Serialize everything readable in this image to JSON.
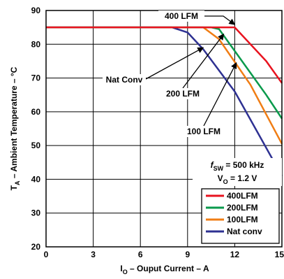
{
  "chart_data": {
    "type": "line",
    "xlabel_main": "I",
    "xlabel_sub": "O",
    "xlabel_rest": " – Ouput Current  – A",
    "ylabel_main": "T",
    "ylabel_sub": "A",
    "ylabel_rest": " – Ambient Temperature – °C",
    "xlim": [
      0,
      15
    ],
    "ylim": [
      20,
      90
    ],
    "xticks": [
      0,
      3,
      6,
      9,
      12,
      15
    ],
    "xtick_labels": [
      "0",
      "3",
      "6",
      "9",
      "12",
      "15"
    ],
    "yticks": [
      20,
      30,
      40,
      50,
      60,
      70,
      80,
      90
    ],
    "ytick_labels": [
      "20",
      "30",
      "40",
      "50",
      "60",
      "70",
      "80",
      "90"
    ],
    "grid": true,
    "legend_position": "bottom-right",
    "series": [
      {
        "name": "400LFM",
        "color": "#e8131f",
        "x": [
          0,
          12,
          14,
          15
        ],
        "y": [
          85,
          85,
          75,
          68.5
        ]
      },
      {
        "name": "200LFM",
        "color": "#0a9a4c",
        "x": [
          0,
          10.5,
          11,
          12,
          14,
          15
        ],
        "y": [
          85,
          85,
          84.5,
          78,
          65,
          58
        ]
      },
      {
        "name": "100LFM",
        "color": "#f07d14",
        "x": [
          0,
          10,
          11,
          13,
          15
        ],
        "y": [
          85,
          85,
          81.5,
          68,
          50.5
        ]
      },
      {
        "name": "Nat conv",
        "color": "#2e3192",
        "x": [
          0,
          8,
          9,
          10,
          12,
          15
        ],
        "y": [
          85,
          85,
          83.5,
          78.5,
          66,
          41
        ]
      }
    ],
    "annotations": [
      {
        "text": "400 LFM",
        "arrow_to": [
          12,
          85
        ]
      },
      {
        "text": "Nat Conv",
        "arrow_to": [
          10,
          79
        ]
      },
      {
        "text": "200 LFM",
        "arrow_to": [
          11.3,
          83
        ]
      },
      {
        "text": "100 LFM",
        "arrow_to": [
          12.1,
          74.5
        ]
      }
    ],
    "conditions": {
      "fsw_symbol": "f",
      "fsw_sub": "SW",
      "fsw_value": " = 500 kHz",
      "vo_symbol": "V",
      "vo_sub": "O",
      "vo_value": " = 1.2 V"
    }
  }
}
